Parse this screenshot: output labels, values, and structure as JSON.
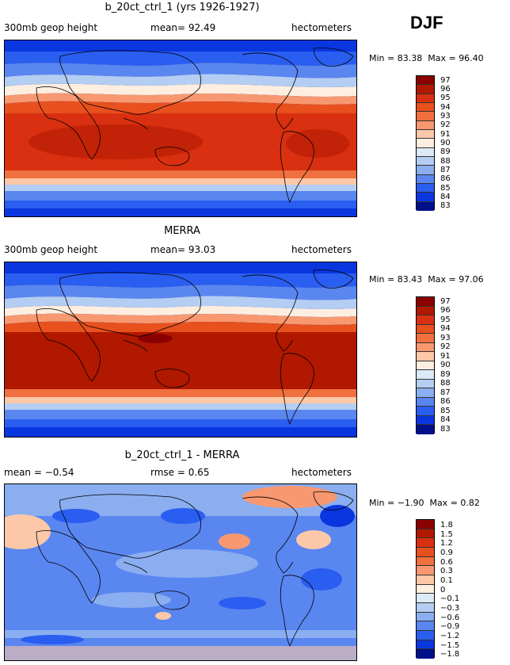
{
  "season": "DJF",
  "panels": [
    {
      "title": "b_20ct_ctrl_1 (yrs 1926-1927)",
      "left_label": "300mb geop height",
      "middle_label": "mean=  92.49",
      "units": "hectometers",
      "min_label": "Min = ",
      "min_value": "83.38",
      "max_label": "Max = ",
      "max_value": "96.40",
      "colorbar_labels": [
        "97",
        "96",
        "95",
        "94",
        "93",
        "92",
        "91",
        "90",
        "89",
        "88",
        "87",
        "86",
        "85",
        "84",
        "83"
      ]
    },
    {
      "title": "MERRA",
      "left_label": "300mb geop height",
      "middle_label": "mean=  93.03",
      "units": "hectometers",
      "min_label": "Min = ",
      "min_value": "83.43",
      "max_label": "Max = ",
      "max_value": "97.06",
      "colorbar_labels": [
        "97",
        "96",
        "95",
        "94",
        "93",
        "92",
        "91",
        "90",
        "89",
        "88",
        "87",
        "86",
        "85",
        "84",
        "83"
      ]
    },
    {
      "title": "b_20ct_ctrl_1 - MERRA",
      "left_label": "mean = −0.54",
      "middle_label": "rmse =  0.65",
      "units": "hectometers",
      "min_label": "Min = ",
      "min_value": "−1.90",
      "max_label": "Max = ",
      "max_value": "0.82",
      "colorbar_labels": [
        "1.8",
        "1.5",
        "1.2",
        "0.9",
        "0.6",
        "0.3",
        "0.1",
        "0",
        "−0.1",
        "−0.3",
        "−0.6",
        "−0.9",
        "−1.2",
        "−1.5",
        "−1.8"
      ]
    }
  ],
  "colors": {
    "scale": [
      "#8b0000",
      "#b01800",
      "#d83010",
      "#e8501e",
      "#f07040",
      "#f89870",
      "#fcc8a8",
      "#fdeee0",
      "#dceaf8",
      "#b4cdf2",
      "#8aaef0",
      "#5a86f0",
      "#2a5ef0",
      "#0a36e0",
      "#00108a"
    ]
  }
}
